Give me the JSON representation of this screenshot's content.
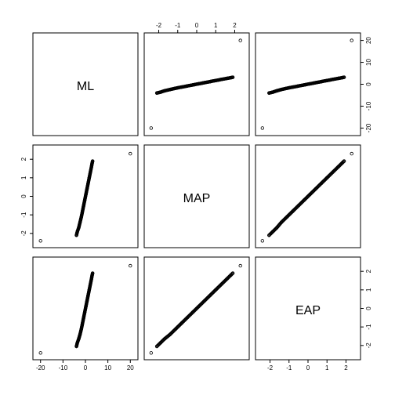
{
  "chart_data": {
    "type": "scatter",
    "layout": "pairs-matrix",
    "variables": [
      "ML",
      "MAP",
      "EAP"
    ],
    "axes": {
      "ML": {
        "ticks": [
          -20,
          -10,
          0,
          10,
          20
        ],
        "tick_labels": [
          "-20",
          "-10",
          "0",
          "10",
          "20"
        ],
        "lim": [
          -22,
          22
        ]
      },
      "MAP": {
        "ticks": [
          -2,
          -1,
          0,
          1,
          2
        ],
        "tick_labels": [
          "-2",
          "-1",
          "0",
          "1",
          "2"
        ],
        "lim": [
          -2.6,
          2.6
        ]
      },
      "EAP": {
        "ticks": [
          -2,
          -1,
          0,
          1,
          2
        ],
        "tick_labels": [
          "-2",
          "-1",
          "0",
          "1",
          "2"
        ],
        "lim": [
          -2.6,
          2.6
        ]
      }
    },
    "tick_sides": {
      "top": "MAP",
      "bottom": [
        "ML",
        "EAP"
      ],
      "left": "MAP",
      "right": [
        "ML",
        "EAP"
      ]
    },
    "series_samples": [
      {
        "ML": -20.0,
        "MAP": -2.4,
        "EAP": -2.4
      },
      {
        "ML": -4.0,
        "MAP": -2.1,
        "EAP": -2.05
      },
      {
        "ML": -3.6,
        "MAP": -1.9,
        "EAP": -1.85
      },
      {
        "ML": -3.0,
        "MAP": -1.7,
        "EAP": -1.65
      },
      {
        "ML": -2.4,
        "MAP": -1.4,
        "EAP": -1.4
      },
      {
        "ML": -1.8,
        "MAP": -1.1,
        "EAP": -1.1
      },
      {
        "ML": -1.3,
        "MAP": -0.8,
        "EAP": -0.8
      },
      {
        "ML": -0.8,
        "MAP": -0.5,
        "EAP": -0.5
      },
      {
        "ML": -0.3,
        "MAP": -0.2,
        "EAP": -0.2
      },
      {
        "ML": 0.2,
        "MAP": 0.1,
        "EAP": 0.1
      },
      {
        "ML": 0.7,
        "MAP": 0.4,
        "EAP": 0.4
      },
      {
        "ML": 1.2,
        "MAP": 0.7,
        "EAP": 0.7
      },
      {
        "ML": 1.7,
        "MAP": 1.0,
        "EAP": 1.0
      },
      {
        "ML": 2.2,
        "MAP": 1.3,
        "EAP": 1.3
      },
      {
        "ML": 2.7,
        "MAP": 1.6,
        "EAP": 1.6
      },
      {
        "ML": 3.0,
        "MAP": 1.8,
        "EAP": 1.8
      },
      {
        "ML": 3.2,
        "MAP": 1.9,
        "EAP": 1.9
      },
      {
        "ML": 20.0,
        "MAP": 2.3,
        "EAP": 2.3
      }
    ],
    "grid": false,
    "legend": "none"
  }
}
